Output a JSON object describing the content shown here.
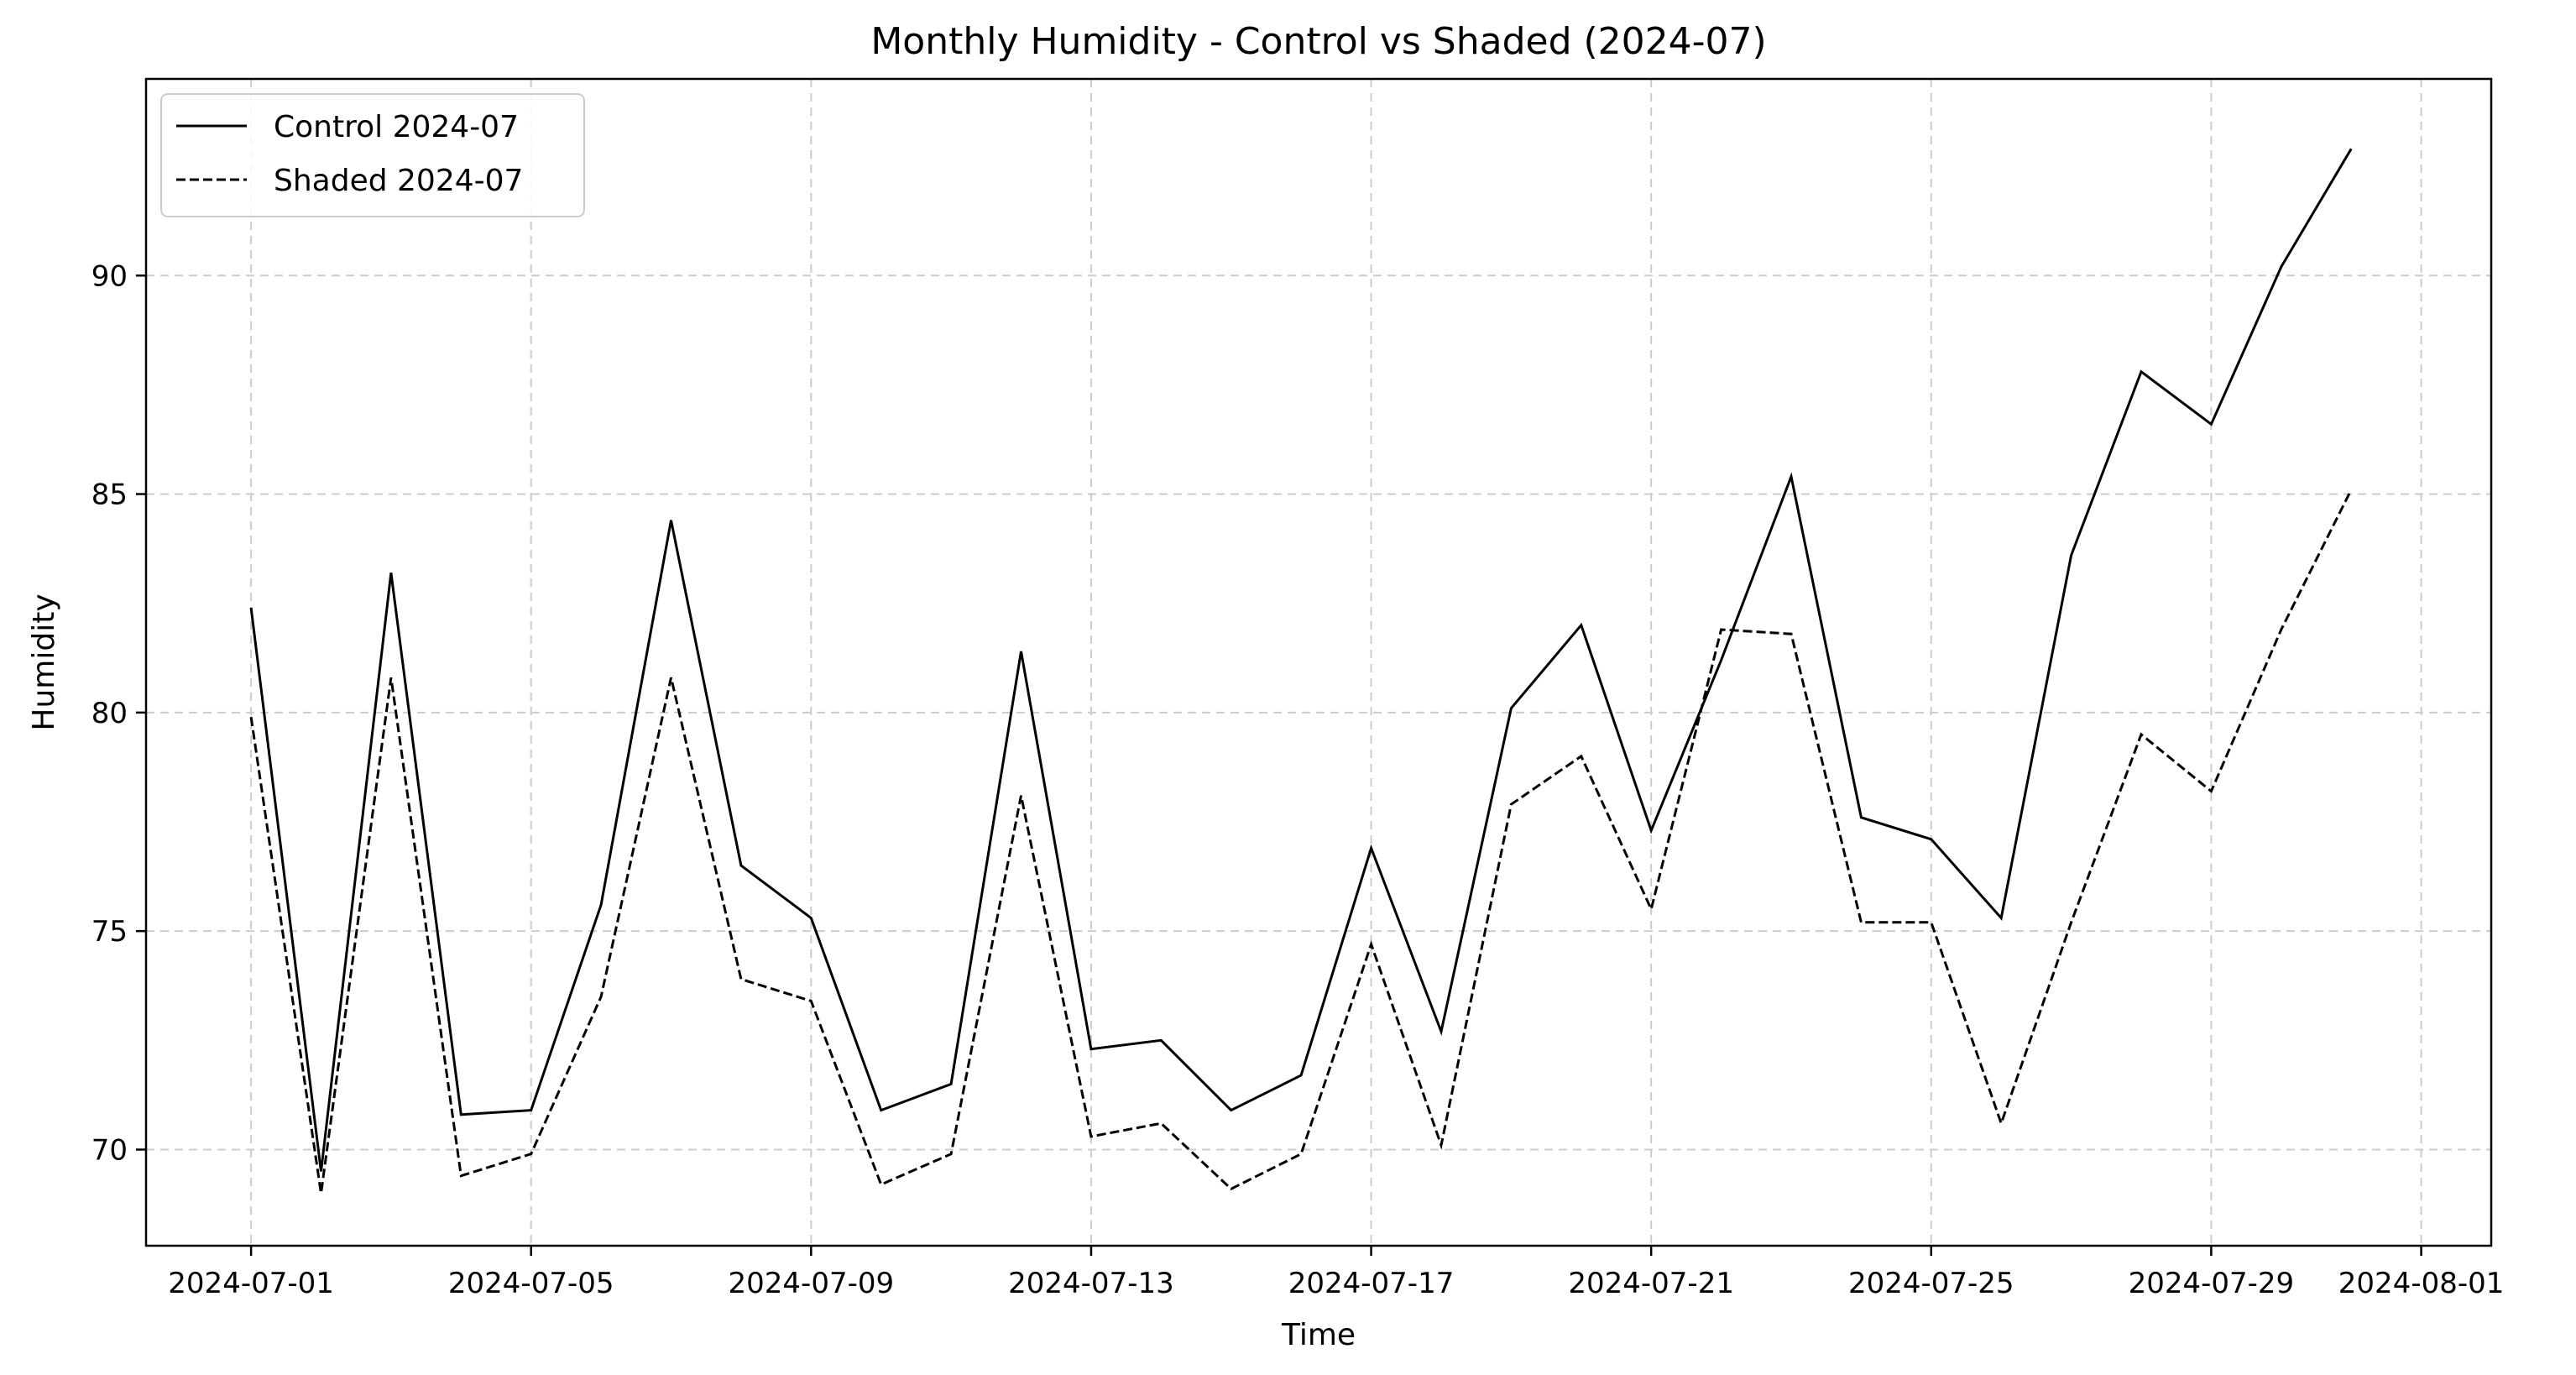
{
  "chart_data": {
    "type": "line",
    "title": "Monthly Humidity - Control vs Shaded (2024-07)",
    "xlabel": "Time",
    "ylabel": "Humidity",
    "x": [
      "2024-07-01",
      "2024-07-02",
      "2024-07-03",
      "2024-07-04",
      "2024-07-05",
      "2024-07-06",
      "2024-07-07",
      "2024-07-08",
      "2024-07-09",
      "2024-07-10",
      "2024-07-11",
      "2024-07-12",
      "2024-07-13",
      "2024-07-14",
      "2024-07-15",
      "2024-07-16",
      "2024-07-17",
      "2024-07-18",
      "2024-07-19",
      "2024-07-20",
      "2024-07-21",
      "2024-07-22",
      "2024-07-23",
      "2024-07-24",
      "2024-07-25",
      "2024-07-26",
      "2024-07-27",
      "2024-07-28",
      "2024-07-29",
      "2024-07-30",
      "2024-07-31"
    ],
    "xlim": [
      "2024-06-29T12:00",
      "2024-08-02T00:00"
    ],
    "ylim": [
      67.8,
      94.5
    ],
    "x_ticks": [
      "2024-07-01",
      "2024-07-05",
      "2024-07-09",
      "2024-07-13",
      "2024-07-17",
      "2024-07-21",
      "2024-07-25",
      "2024-07-29",
      "2024-08-01"
    ],
    "y_ticks": [
      70,
      75,
      80,
      85,
      90
    ],
    "grid": true,
    "legend_position": "top-left",
    "series": [
      {
        "name": "Control 2024-07",
        "style": "solid",
        "color": "#000000",
        "values": [
          82.4,
          69.5,
          83.2,
          70.8,
          70.9,
          75.6,
          84.4,
          76.5,
          75.3,
          70.9,
          71.5,
          81.4,
          72.3,
          72.5,
          70.9,
          71.7,
          76.9,
          72.7,
          80.1,
          82.0,
          77.3,
          81.2,
          85.4,
          77.6,
          77.1,
          75.3,
          83.6,
          87.8,
          86.6,
          90.2,
          92.9
        ]
      },
      {
        "name": "Shaded 2024-07",
        "style": "dashed",
        "color": "#000000",
        "values": [
          79.9,
          69.0,
          80.8,
          69.4,
          69.9,
          73.5,
          80.8,
          73.9,
          73.4,
          69.2,
          69.9,
          78.1,
          70.3,
          70.6,
          69.1,
          69.9,
          74.7,
          70.1,
          77.9,
          79.0,
          75.5,
          81.9,
          81.8,
          75.2,
          75.2,
          70.6,
          75.2,
          79.5,
          78.2,
          81.9,
          85.1
        ]
      }
    ]
  }
}
